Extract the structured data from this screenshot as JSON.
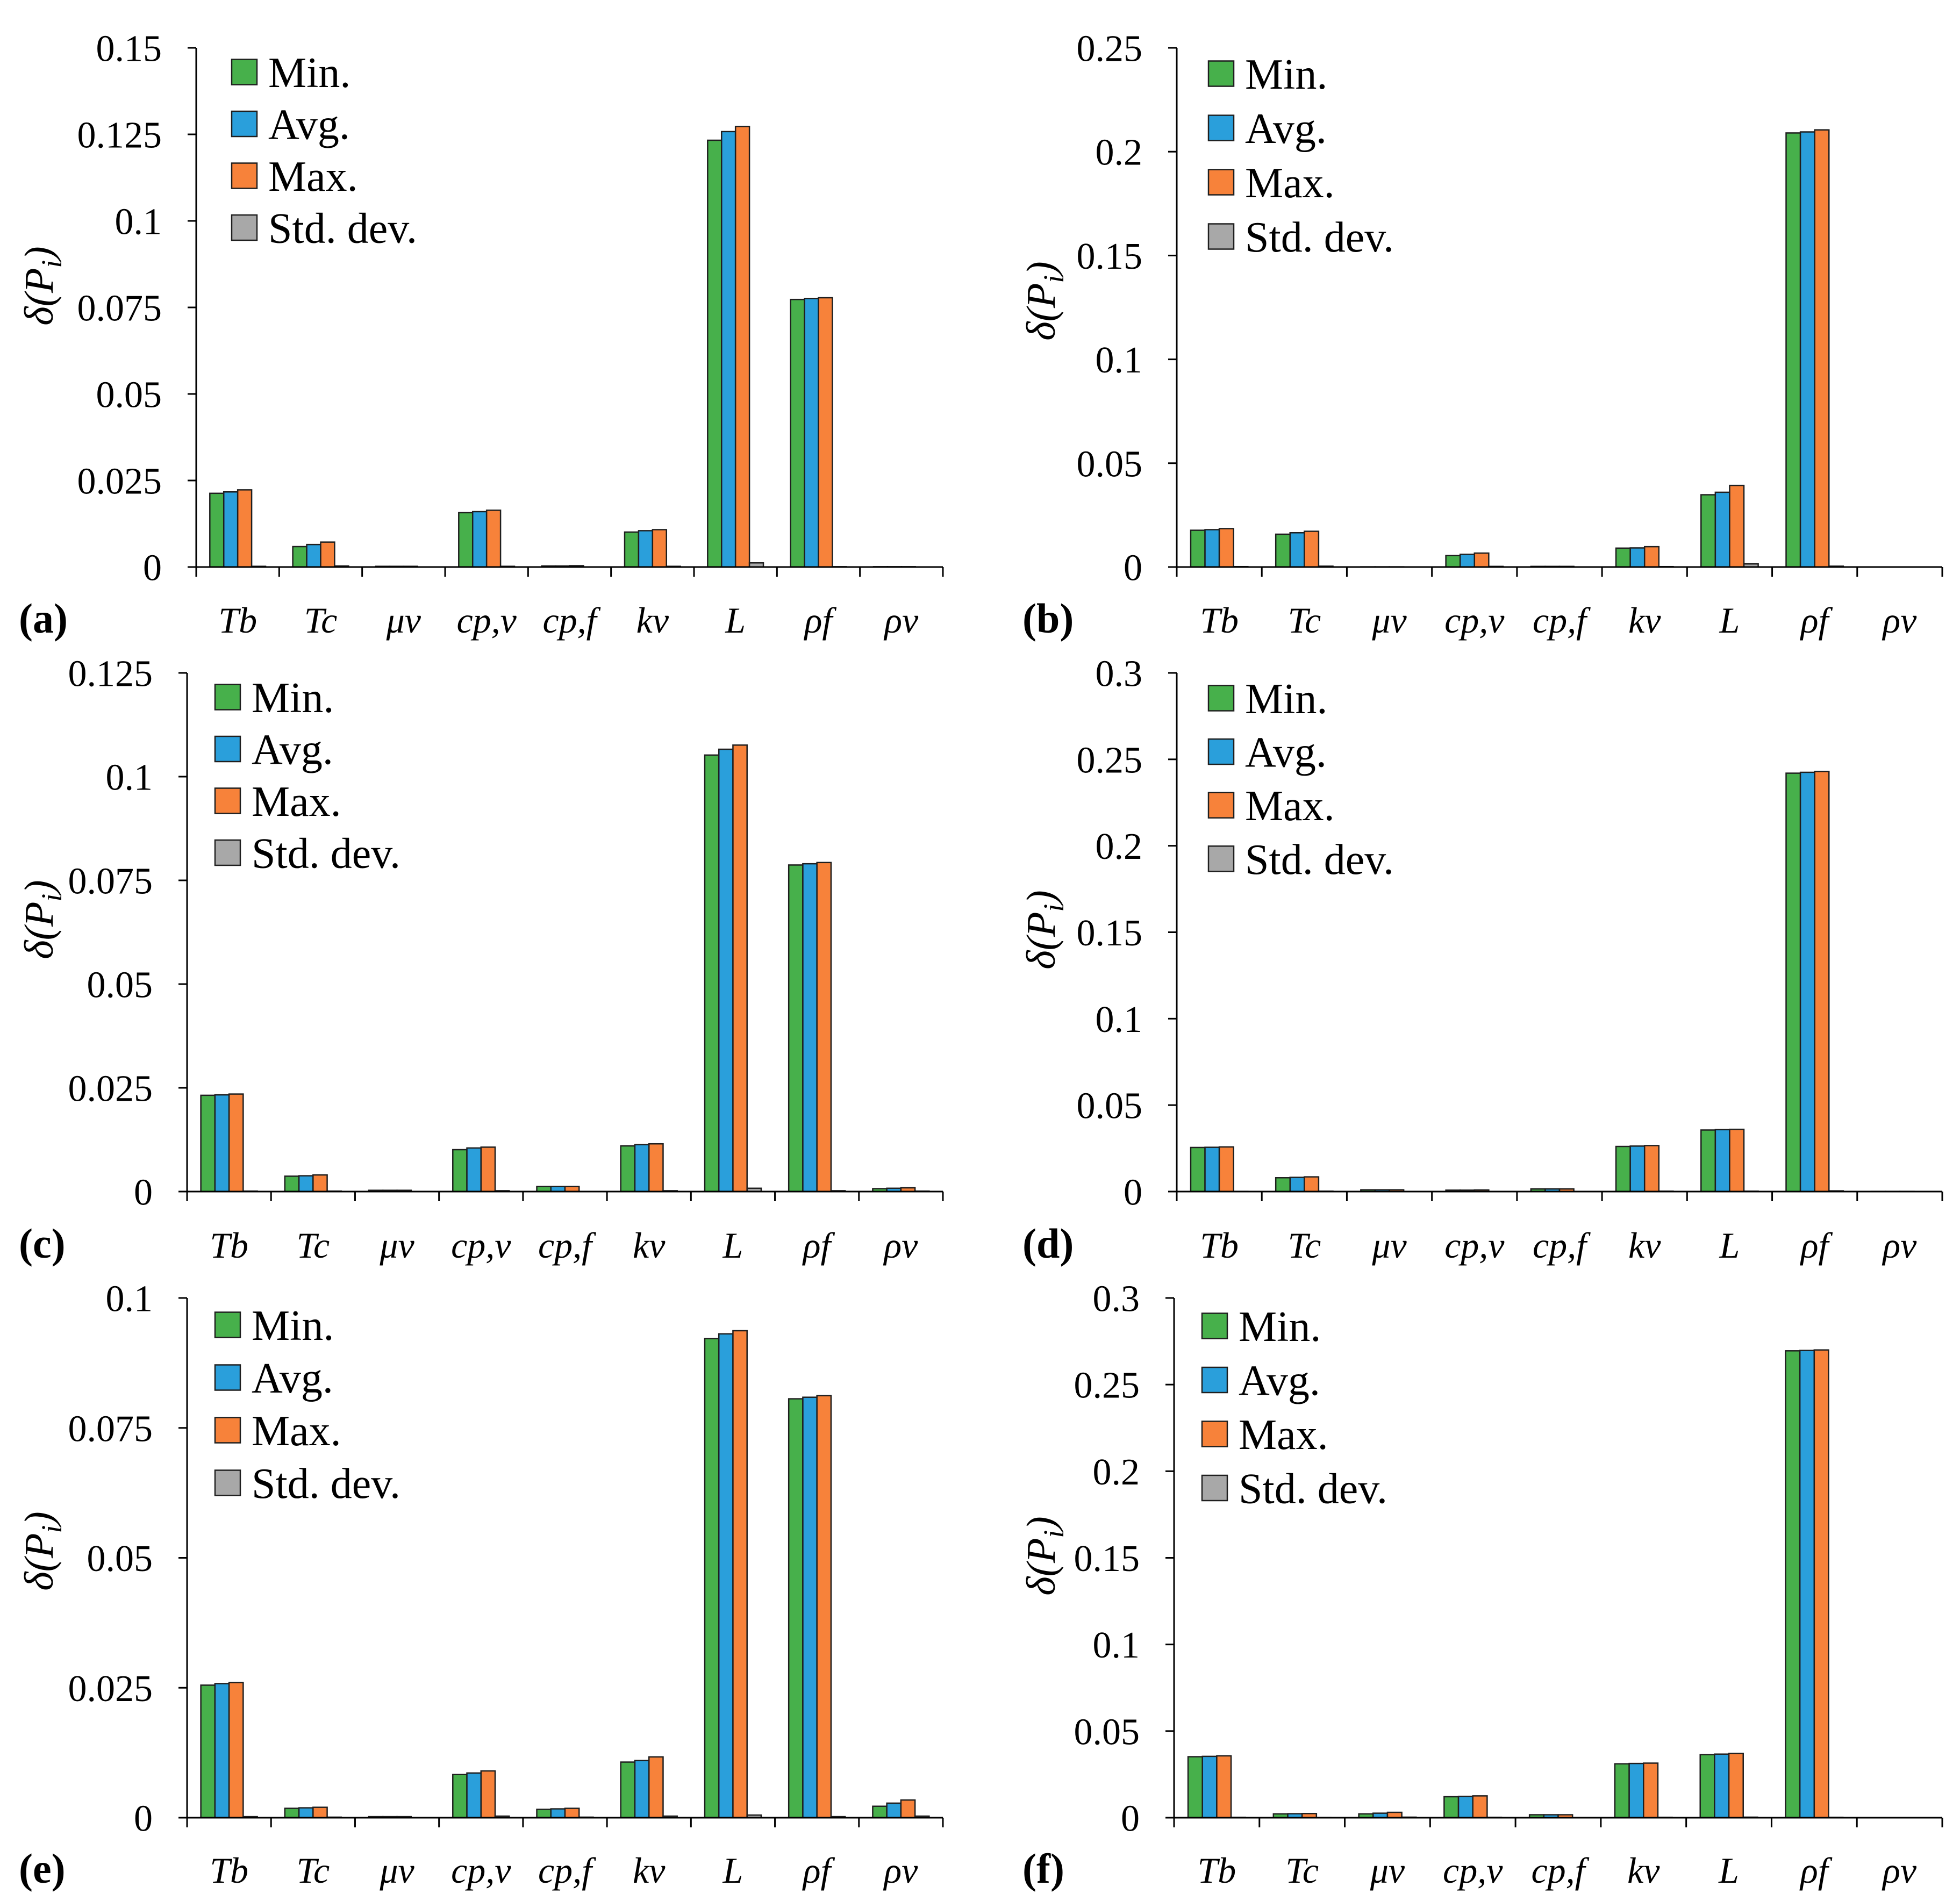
{
  "style": {
    "bar_outline": "#1f1f1f",
    "axis": "#000000"
  },
  "chart_data": [
    {
      "panel": "(a)",
      "type": "bar",
      "ylabel": {
        "base": "δ(P",
        "sub": "i",
        "close": ")"
      },
      "categories": [
        "Tb",
        "Tc",
        "μv",
        "cp,v",
        "cp,f",
        "kv",
        "L",
        "ρf",
        "ρv"
      ],
      "series": [
        {
          "name": "Min.",
          "color": "#47b04b",
          "values": [
            0.0213,
            0.0059,
            0.0002,
            0.0157,
            0.0003,
            0.0101,
            0.1233,
            0.0773,
            0.0001
          ]
        },
        {
          "name": "Avg.",
          "color": "#2a9fdb",
          "values": [
            0.0217,
            0.0065,
            0.0002,
            0.016,
            0.0003,
            0.0105,
            0.1258,
            0.0776,
            0.0001
          ]
        },
        {
          "name": "Max.",
          "color": "#f7823a",
          "values": [
            0.0223,
            0.0072,
            0.0002,
            0.0164,
            0.0004,
            0.0108,
            0.1273,
            0.0778,
            0.0001
          ]
        },
        {
          "name": "Std. dev.",
          "color": "#a8a8a8",
          "values": [
            0.0002,
            0.0003,
            0.0,
            0.0002,
            0.0,
            0.0002,
            0.0012,
            0.0001,
            0.0
          ]
        }
      ],
      "ylim": [
        0,
        0.15
      ],
      "yticks": [
        "0",
        "0.025",
        "0.05",
        "0.075",
        "0.1",
        "0.125",
        "0.15"
      ],
      "legend": "top-left",
      "grid": false
    },
    {
      "panel": "(b)",
      "type": "bar",
      "ylabel": {
        "base": "δ(P",
        "sub": "i",
        "close": ")"
      },
      "categories": [
        "Tb",
        "Tc",
        "μv",
        "cp,v",
        "cp,f",
        "kv",
        "L",
        "ρf",
        "ρv"
      ],
      "series": [
        {
          "name": "Min.",
          "color": "#47b04b",
          "values": [
            0.0177,
            0.0158,
            0.0001,
            0.0055,
            0.0003,
            0.0091,
            0.0348,
            0.209,
            0.0
          ]
        },
        {
          "name": "Avg.",
          "color": "#2a9fdb",
          "values": [
            0.018,
            0.0165,
            0.0001,
            0.0061,
            0.0003,
            0.0092,
            0.036,
            0.2095,
            0.0
          ]
        },
        {
          "name": "Max.",
          "color": "#f7823a",
          "values": [
            0.0185,
            0.0172,
            0.0001,
            0.0067,
            0.0003,
            0.0098,
            0.0393,
            0.2105,
            0.0
          ]
        },
        {
          "name": "Std. dev.",
          "color": "#a8a8a8",
          "values": [
            0.0002,
            0.0004,
            0.0,
            0.0003,
            0.0,
            0.0002,
            0.0015,
            0.0004,
            0.0
          ]
        }
      ],
      "ylim": [
        0,
        0.25
      ],
      "yticks": [
        "0",
        "0.05",
        "0.1",
        "0.15",
        "0.2",
        "0.25"
      ],
      "legend": "top-left",
      "grid": false
    },
    {
      "panel": "(c)",
      "type": "bar",
      "ylabel": {
        "base": "δ(P",
        "sub": "i",
        "close": ")"
      },
      "categories": [
        "Tb",
        "Tc",
        "μv",
        "cp,v",
        "cp,f",
        "kv",
        "L",
        "ρf",
        "ρv"
      ],
      "series": [
        {
          "name": "Min.",
          "color": "#47b04b",
          "values": [
            0.0232,
            0.0037,
            0.0003,
            0.0101,
            0.0012,
            0.011,
            0.1052,
            0.0787,
            0.0007
          ]
        },
        {
          "name": "Avg.",
          "color": "#2a9fdb",
          "values": [
            0.0233,
            0.0038,
            0.0003,
            0.0105,
            0.0012,
            0.0113,
            0.1066,
            0.079,
            0.0008
          ]
        },
        {
          "name": "Max.",
          "color": "#f7823a",
          "values": [
            0.0235,
            0.004,
            0.0003,
            0.0107,
            0.0012,
            0.0115,
            0.1076,
            0.0793,
            0.0009
          ]
        },
        {
          "name": "Std. dev.",
          "color": "#a8a8a8",
          "values": [
            0.0001,
            0.0001,
            0.0,
            0.0002,
            0.0,
            0.0002,
            0.0008,
            0.0002,
            0.0001
          ]
        }
      ],
      "ylim": [
        0,
        0.125
      ],
      "yticks": [
        "0",
        "0.025",
        "0.05",
        "0.075",
        "0.1",
        "0.125"
      ],
      "legend": "top-left",
      "grid": false
    },
    {
      "panel": "(d)",
      "type": "bar",
      "ylabel": {
        "base": "δ(P",
        "sub": "i",
        "close": ")"
      },
      "categories": [
        "Tb",
        "Tc",
        "μv",
        "cp,v",
        "cp,f",
        "kv",
        "L",
        "ρf",
        "ρv"
      ],
      "series": [
        {
          "name": "Min.",
          "color": "#47b04b",
          "values": [
            0.0255,
            0.008,
            0.001,
            0.0008,
            0.0015,
            0.0261,
            0.0356,
            0.242,
            0.0001
          ]
        },
        {
          "name": "Avg.",
          "color": "#2a9fdb",
          "values": [
            0.0256,
            0.0082,
            0.001,
            0.0008,
            0.0015,
            0.0263,
            0.0358,
            0.2425,
            0.0001
          ]
        },
        {
          "name": "Max.",
          "color": "#f7823a",
          "values": [
            0.0258,
            0.0085,
            0.001,
            0.0009,
            0.0015,
            0.0266,
            0.036,
            0.243,
            0.0001
          ]
        },
        {
          "name": "Std. dev.",
          "color": "#a8a8a8",
          "values": [
            0.0001,
            0.0002,
            0.0,
            0.0,
            0.0,
            0.0002,
            0.0002,
            0.0004,
            0.0
          ]
        }
      ],
      "ylim": [
        0,
        0.3
      ],
      "yticks": [
        "0",
        "0.05",
        "0.1",
        "0.15",
        "0.2",
        "0.25",
        "0.3"
      ],
      "legend": "top-left",
      "grid": false
    },
    {
      "panel": "(e)",
      "type": "bar",
      "ylabel": {
        "base": "δ(P",
        "sub": "i",
        "close": ")"
      },
      "categories": [
        "Tb",
        "Tc",
        "μv",
        "cp,v",
        "cp,f",
        "kv",
        "L",
        "ρf",
        "ρv"
      ],
      "series": [
        {
          "name": "Min.",
          "color": "#47b04b",
          "values": [
            0.0255,
            0.0018,
            0.0002,
            0.0083,
            0.0016,
            0.0107,
            0.0922,
            0.0806,
            0.0022
          ]
        },
        {
          "name": "Avg.",
          "color": "#2a9fdb",
          "values": [
            0.0258,
            0.0019,
            0.0002,
            0.0086,
            0.0017,
            0.011,
            0.0931,
            0.0809,
            0.0028
          ]
        },
        {
          "name": "Max.",
          "color": "#f7823a",
          "values": [
            0.026,
            0.002,
            0.0002,
            0.009,
            0.0018,
            0.0117,
            0.0937,
            0.0812,
            0.0034
          ]
        },
        {
          "name": "Std. dev.",
          "color": "#a8a8a8",
          "values": [
            0.0002,
            0.0001,
            0.0,
            0.0003,
            0.0001,
            0.0003,
            0.0005,
            0.0002,
            0.0003
          ]
        }
      ],
      "ylim": [
        0,
        0.1
      ],
      "yticks": [
        "0",
        "0.025",
        "0.05",
        "0.075",
        "0.1"
      ],
      "legend": "top-left",
      "grid": false
    },
    {
      "panel": "(f)",
      "type": "bar",
      "ylabel": {
        "base": "δ(P",
        "sub": "i",
        "close": ")"
      },
      "categories": [
        "Tb",
        "Tc",
        "μv",
        "cp,v",
        "cp,f",
        "kv",
        "L",
        "ρf",
        "ρv"
      ],
      "series": [
        {
          "name": "Min.",
          "color": "#47b04b",
          "values": [
            0.0352,
            0.0022,
            0.0022,
            0.0121,
            0.0017,
            0.0311,
            0.0364,
            0.2695,
            0.0
          ]
        },
        {
          "name": "Avg.",
          "color": "#2a9fdb",
          "values": [
            0.0354,
            0.0023,
            0.0026,
            0.0123,
            0.0017,
            0.0313,
            0.0367,
            0.2697,
            0.0
          ]
        },
        {
          "name": "Max.",
          "color": "#f7823a",
          "values": [
            0.0357,
            0.0024,
            0.0031,
            0.0126,
            0.0017,
            0.0315,
            0.0371,
            0.27,
            0.0
          ]
        },
        {
          "name": "Std. dev.",
          "color": "#a8a8a8",
          "values": [
            0.0002,
            0.0001,
            0.0003,
            0.0002,
            0.0,
            0.0002,
            0.0003,
            0.0002,
            0.0
          ]
        }
      ],
      "ylim": [
        0,
        0.3
      ],
      "yticks": [
        "0",
        "0.05",
        "0.1",
        "0.15",
        "0.2",
        "0.25",
        "0.3"
      ],
      "legend": "top-left",
      "grid": false
    }
  ]
}
